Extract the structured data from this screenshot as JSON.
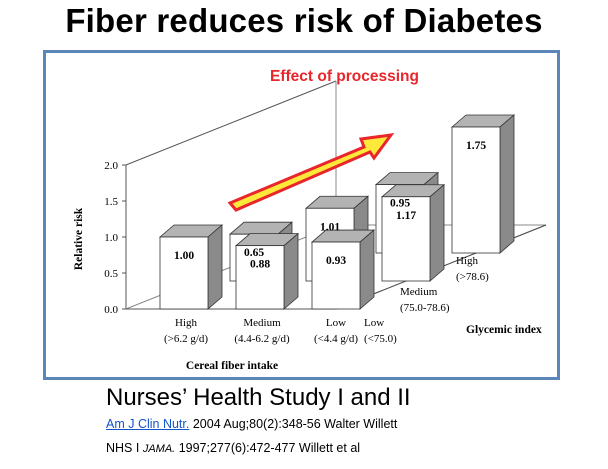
{
  "page": {
    "title": "Fiber reduces risk of Diabetes"
  },
  "annotation": {
    "text": "Effect of processing",
    "color": "#e8262b"
  },
  "chart_data": {
    "type": "bar",
    "subtype": "3d-grouped-bar",
    "title": "",
    "ylabel": "Relative risk",
    "xlabel": "Cereal fiber intake",
    "zlabel": "Glycemic index",
    "ylim": [
      0,
      2.0
    ],
    "yticks": [
      "0.0",
      "0.5",
      "1.0",
      "1.5",
      "2.0"
    ],
    "x_categories": [
      {
        "name": "High",
        "range": "(>6.2 g/d)"
      },
      {
        "name": "Medium",
        "range": "(4.4-6.2 g/d)"
      },
      {
        "name": "Low",
        "range": "(<4.4 g/d)"
      }
    ],
    "z_categories": [
      {
        "name": "Low",
        "range": "(<75.0)"
      },
      {
        "name": "Medium",
        "range": "(75.0-78.6)"
      },
      {
        "name": "High",
        "range": "(>78.6)"
      }
    ],
    "series": [
      {
        "glycemic": "Low",
        "values": [
          1.0,
          0.88,
          0.93
        ],
        "labels": [
          "1.00",
          "0.88",
          "0.93"
        ]
      },
      {
        "glycemic": "Medium",
        "values": [
          0.65,
          1.01,
          1.17
        ],
        "labels": [
          "0.65",
          "1.01",
          "1.17"
        ]
      },
      {
        "glycemic": "High",
        "values": [
          null,
          0.95,
          1.75
        ],
        "labels": [
          "",
          "0.95",
          "1.75"
        ]
      }
    ],
    "grid": false,
    "bar_front_color": "#ffffff",
    "bar_top_color": "#b3b3b3",
    "bar_side_color": "#8a8a8a"
  },
  "citation": {
    "study": "Nurses’ Health Study I and II",
    "journal_link": "Am J Clin Nutr.",
    "line2_rest": " 2004 Aug;80(2):348-56 Walter Willett",
    "line3_prefix": "NHS I ",
    "line3_journal": "JAMA.",
    "line3_rest": " 1997;277(6):472-477 Willett et al"
  },
  "colors": {
    "frame_border": "#5b86b7",
    "arrow_fill": "#fde93a",
    "arrow_stroke": "#e8262b",
    "link": "#1155cc"
  }
}
